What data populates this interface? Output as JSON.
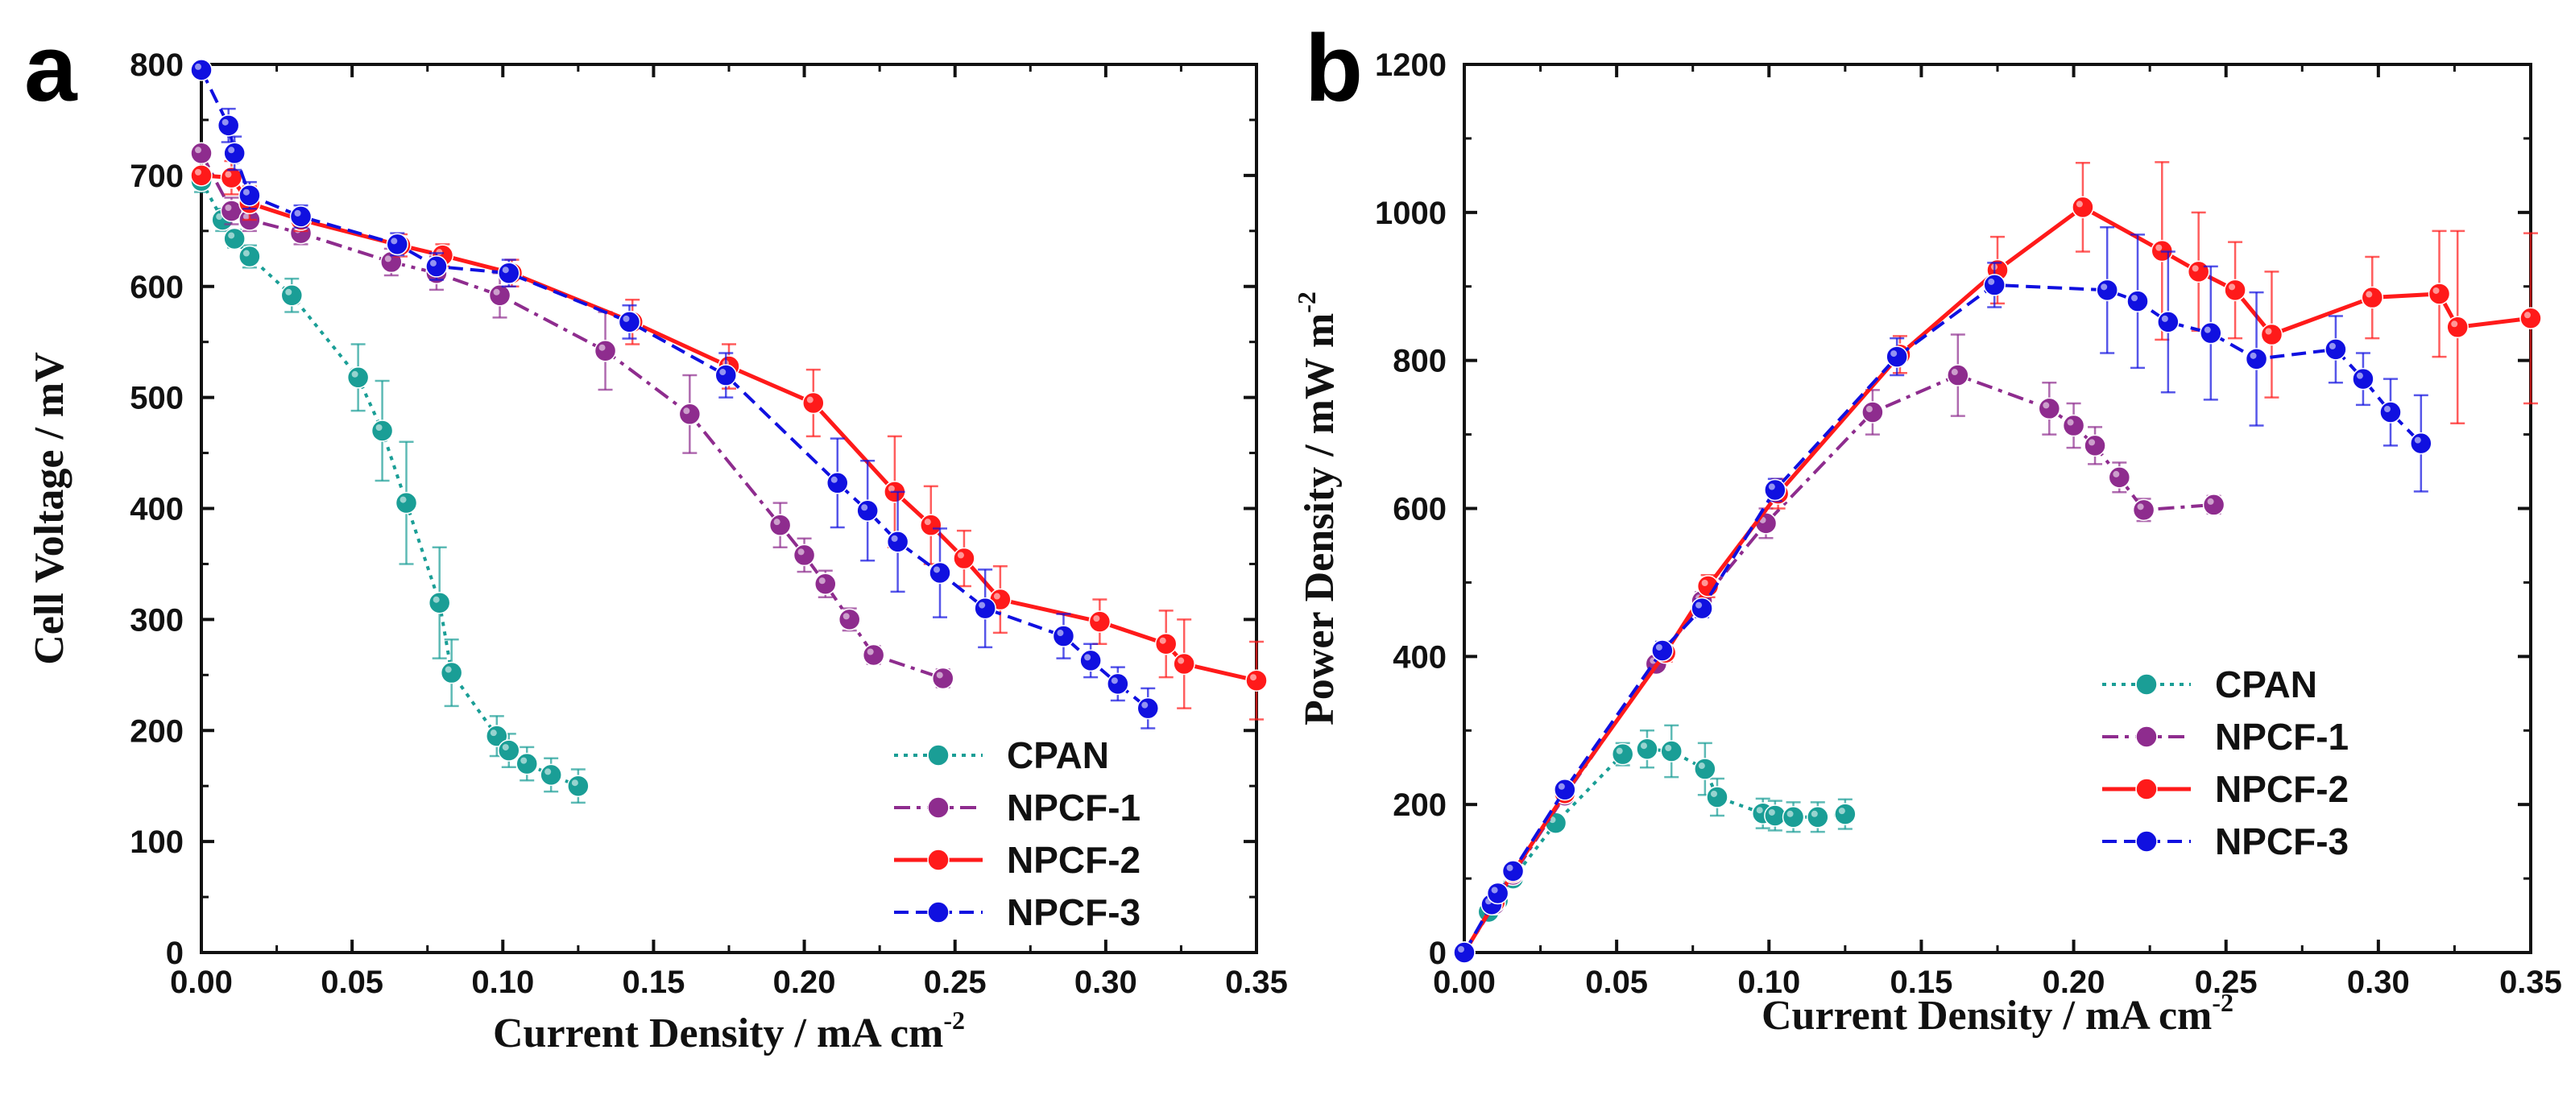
{
  "chart_data": [
    {
      "type": "line",
      "panel_label": "a",
      "title": "",
      "xlabel": "Current Density / mA cm",
      "xlabel_sup": "-2",
      "ylabel": "Cell Voltage / mV",
      "xlim": [
        0,
        0.35
      ],
      "ylim": [
        0,
        800
      ],
      "xticks": [
        "0.00",
        "0.05",
        "0.10",
        "0.15",
        "0.20",
        "0.25",
        "0.30",
        "0.35"
      ],
      "yticks": [
        "0",
        "100",
        "200",
        "300",
        "400",
        "500",
        "600",
        "700",
        "800"
      ],
      "legend_position": "bottom-right",
      "series": [
        {
          "name": "CPAN",
          "color": "#1a9e96",
          "style": "dotted",
          "x": [
            0.0,
            0.007,
            0.011,
            0.016,
            0.03,
            0.052,
            0.06,
            0.068,
            0.079,
            0.083,
            0.098,
            0.102,
            0.108,
            0.116,
            0.125
          ],
          "y": [
            695,
            660,
            643,
            627,
            592,
            518,
            470,
            405,
            315,
            252,
            195,
            182,
            170,
            160,
            150
          ],
          "err": [
            10,
            10,
            8,
            10,
            15,
            30,
            45,
            55,
            50,
            30,
            18,
            15,
            15,
            15,
            15
          ]
        },
        {
          "name": "NPCF-1",
          "color": "#8e2c8e",
          "style": "dashdot",
          "x": [
            0.0,
            0.01,
            0.016,
            0.033,
            0.063,
            0.078,
            0.099,
            0.134,
            0.162,
            0.192,
            0.2,
            0.207,
            0.215,
            0.223,
            0.246
          ],
          "y": [
            720,
            668,
            660,
            648,
            622,
            612,
            592,
            542,
            485,
            385,
            358,
            332,
            300,
            268,
            247
          ],
          "err": [
            0,
            12,
            10,
            10,
            12,
            15,
            20,
            35,
            35,
            20,
            15,
            12,
            10,
            8,
            8
          ]
        },
        {
          "name": "NPCF-2",
          "color": "#ff1a1a",
          "style": "solid",
          "x": [
            0.0,
            0.01,
            0.016,
            0.033,
            0.066,
            0.08,
            0.103,
            0.143,
            0.175,
            0.203,
            0.23,
            0.242,
            0.253,
            0.265,
            0.298,
            0.32,
            0.326,
            0.35
          ],
          "y": [
            700,
            698,
            675,
            660,
            637,
            628,
            612,
            568,
            528,
            495,
            415,
            385,
            355,
            318,
            298,
            278,
            260,
            245
          ],
          "err": [
            0,
            15,
            15,
            10,
            10,
            10,
            12,
            20,
            20,
            30,
            50,
            35,
            25,
            30,
            20,
            30,
            40,
            35
          ]
        },
        {
          "name": "NPCF-3",
          "color": "#1010e0",
          "style": "dashed",
          "x": [
            0.0,
            0.009,
            0.011,
            0.016,
            0.033,
            0.065,
            0.078,
            0.102,
            0.142,
            0.174,
            0.211,
            0.221,
            0.231,
            0.245,
            0.26,
            0.286,
            0.295,
            0.304,
            0.314
          ],
          "y": [
            795,
            745,
            720,
            682,
            663,
            638,
            618,
            612,
            568,
            520,
            423,
            398,
            370,
            342,
            310,
            285,
            263,
            242,
            220
          ],
          "err": [
            0,
            15,
            15,
            12,
            10,
            10,
            12,
            12,
            15,
            20,
            40,
            45,
            45,
            40,
            35,
            20,
            15,
            15,
            18
          ]
        }
      ]
    },
    {
      "type": "line",
      "panel_label": "b",
      "title": "",
      "xlabel": "Current Density / mA cm",
      "xlabel_sup": "-2",
      "ylabel": "Power Density / mW m",
      "ylabel_sup": "-2",
      "xlim": [
        0,
        0.35
      ],
      "ylim": [
        0,
        1200
      ],
      "xticks": [
        "0.00",
        "0.05",
        "0.10",
        "0.15",
        "0.20",
        "0.25",
        "0.30",
        "0.35"
      ],
      "yticks": [
        "0",
        "200",
        "400",
        "600",
        "800",
        "1000",
        "1200"
      ],
      "legend_position": "bottom-right",
      "series": [
        {
          "name": "CPAN",
          "color": "#1a9e96",
          "style": "dotted",
          "x": [
            0.0,
            0.008,
            0.011,
            0.016,
            0.03,
            0.052,
            0.06,
            0.068,
            0.079,
            0.083,
            0.098,
            0.102,
            0.108,
            0.116,
            0.125
          ],
          "y": [
            0,
            55,
            70,
            100,
            175,
            268,
            275,
            272,
            248,
            210,
            188,
            185,
            183,
            183,
            187
          ],
          "err": [
            0,
            5,
            5,
            5,
            8,
            15,
            25,
            35,
            35,
            25,
            20,
            20,
            20,
            20,
            20
          ]
        },
        {
          "name": "NPCF-1",
          "color": "#8e2c8e",
          "style": "dashdot",
          "x": [
            0.0,
            0.01,
            0.016,
            0.033,
            0.063,
            0.078,
            0.099,
            0.134,
            0.162,
            0.192,
            0.2,
            0.207,
            0.215,
            0.223,
            0.246
          ],
          "y": [
            0,
            65,
            105,
            212,
            390,
            475,
            580,
            730,
            780,
            735,
            712,
            685,
            642,
            598,
            605
          ],
          "err": [
            0,
            5,
            5,
            8,
            10,
            12,
            20,
            30,
            55,
            35,
            30,
            25,
            20,
            15,
            12
          ]
        },
        {
          "name": "NPCF-2",
          "color": "#ff1a1a",
          "style": "solid",
          "x": [
            0.0,
            0.01,
            0.016,
            0.033,
            0.066,
            0.08,
            0.103,
            0.143,
            0.175,
            0.203,
            0.229,
            0.241,
            0.253,
            0.265,
            0.298,
            0.32,
            0.326,
            0.35
          ],
          "y": [
            0,
            68,
            108,
            215,
            405,
            495,
            620,
            808,
            922,
            1007,
            948,
            920,
            895,
            835,
            885,
            890,
            845,
            857
          ],
          "err": [
            0,
            5,
            5,
            8,
            12,
            15,
            20,
            25,
            45,
            60,
            120,
            80,
            65,
            85,
            55,
            85,
            130,
            115
          ]
        },
        {
          "name": "NPCF-3",
          "color": "#1010e0",
          "style": "dashed",
          "x": [
            0.0,
            0.009,
            0.011,
            0.016,
            0.033,
            0.065,
            0.078,
            0.102,
            0.142,
            0.174,
            0.211,
            0.221,
            0.231,
            0.245,
            0.26,
            0.286,
            0.295,
            0.304,
            0.314
          ],
          "y": [
            0,
            65,
            80,
            110,
            220,
            408,
            465,
            625,
            805,
            902,
            895,
            880,
            852,
            837,
            802,
            815,
            775,
            730,
            688
          ],
          "err": [
            0,
            5,
            5,
            5,
            8,
            12,
            12,
            15,
            25,
            30,
            85,
            90,
            95,
            90,
            90,
            45,
            35,
            45,
            65
          ]
        }
      ]
    }
  ]
}
